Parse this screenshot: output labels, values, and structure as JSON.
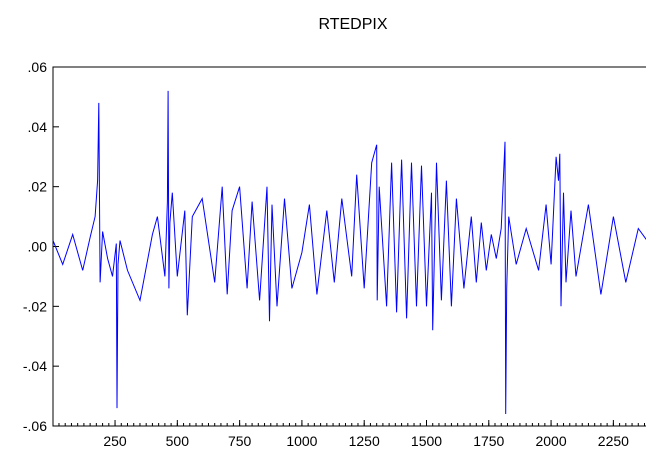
{
  "chart_data": {
    "type": "line",
    "title": "RTEDPIX",
    "xlabel": "",
    "ylabel": "",
    "xlim": [
      1,
      2385
    ],
    "ylim": [
      -0.06,
      0.06
    ],
    "x_ticks": [
      250,
      500,
      750,
      1000,
      1250,
      1500,
      1750,
      2000,
      2250
    ],
    "x_tick_labels": [
      "250",
      "500",
      "750",
      "1000",
      "1250",
      "1500",
      "1750",
      "2000",
      "2250"
    ],
    "y_ticks": [
      -0.06,
      -0.04,
      -0.02,
      0.0,
      0.02,
      0.04,
      0.06
    ],
    "y_tick_labels": [
      "-.06",
      "-.04",
      "-.02",
      ".00",
      ".02",
      ".04",
      ".06"
    ],
    "grid": false,
    "legend": "none",
    "series_color": "#0000ff",
    "series": [
      {
        "x": [
          1,
          40,
          80,
          120,
          150,
          170,
          180,
          185,
          190,
          200,
          220,
          240,
          255,
          258,
          262,
          270,
          300,
          350,
          400,
          420,
          450,
          460,
          463,
          466,
          470,
          480,
          500,
          530,
          540,
          560,
          600,
          650,
          680,
          700,
          720,
          750,
          780,
          800,
          830,
          860,
          870,
          880,
          900,
          930,
          960,
          1000,
          1030,
          1060,
          1100,
          1130,
          1160,
          1200,
          1220,
          1250,
          1280,
          1300,
          1302,
          1310,
          1340,
          1360,
          1380,
          1400,
          1420,
          1440,
          1460,
          1480,
          1500,
          1520,
          1525,
          1540,
          1560,
          1580,
          1600,
          1620,
          1650,
          1680,
          1700,
          1720,
          1740,
          1760,
          1780,
          1800,
          1815,
          1818,
          1822,
          1830,
          1860,
          1900,
          1950,
          1980,
          2000,
          2020,
          2030,
          2035,
          2040,
          2050,
          2060,
          2080,
          2100,
          2150,
          2200,
          2250,
          2300,
          2350,
          2385
        ],
        "y": [
          0.002,
          -0.006,
          0.004,
          -0.008,
          0.003,
          0.01,
          0.022,
          0.048,
          -0.012,
          0.005,
          -0.004,
          -0.01,
          0.001,
          -0.054,
          -0.006,
          0.002,
          -0.008,
          -0.018,
          0.004,
          0.01,
          -0.01,
          0.015,
          0.052,
          -0.014,
          0.008,
          0.018,
          -0.01,
          0.012,
          -0.023,
          0.01,
          0.016,
          -0.012,
          0.02,
          -0.016,
          0.012,
          0.02,
          -0.014,
          0.015,
          -0.018,
          0.02,
          -0.025,
          0.014,
          -0.02,
          0.016,
          -0.014,
          -0.002,
          0.014,
          -0.016,
          0.012,
          -0.012,
          0.016,
          -0.01,
          0.024,
          -0.014,
          0.028,
          0.034,
          -0.018,
          0.02,
          -0.02,
          0.028,
          -0.022,
          0.029,
          -0.024,
          0.028,
          -0.02,
          0.027,
          -0.02,
          0.018,
          -0.028,
          0.028,
          -0.018,
          0.022,
          -0.02,
          0.016,
          -0.014,
          0.01,
          -0.012,
          0.008,
          -0.008,
          0.004,
          -0.004,
          0.006,
          0.035,
          -0.056,
          -0.014,
          0.01,
          -0.006,
          0.006,
          -0.008,
          0.014,
          -0.006,
          0.03,
          0.022,
          0.031,
          -0.02,
          0.018,
          -0.012,
          0.012,
          -0.01,
          0.014,
          -0.016,
          0.01,
          -0.012,
          0.006,
          0.002
        ]
      }
    ]
  }
}
